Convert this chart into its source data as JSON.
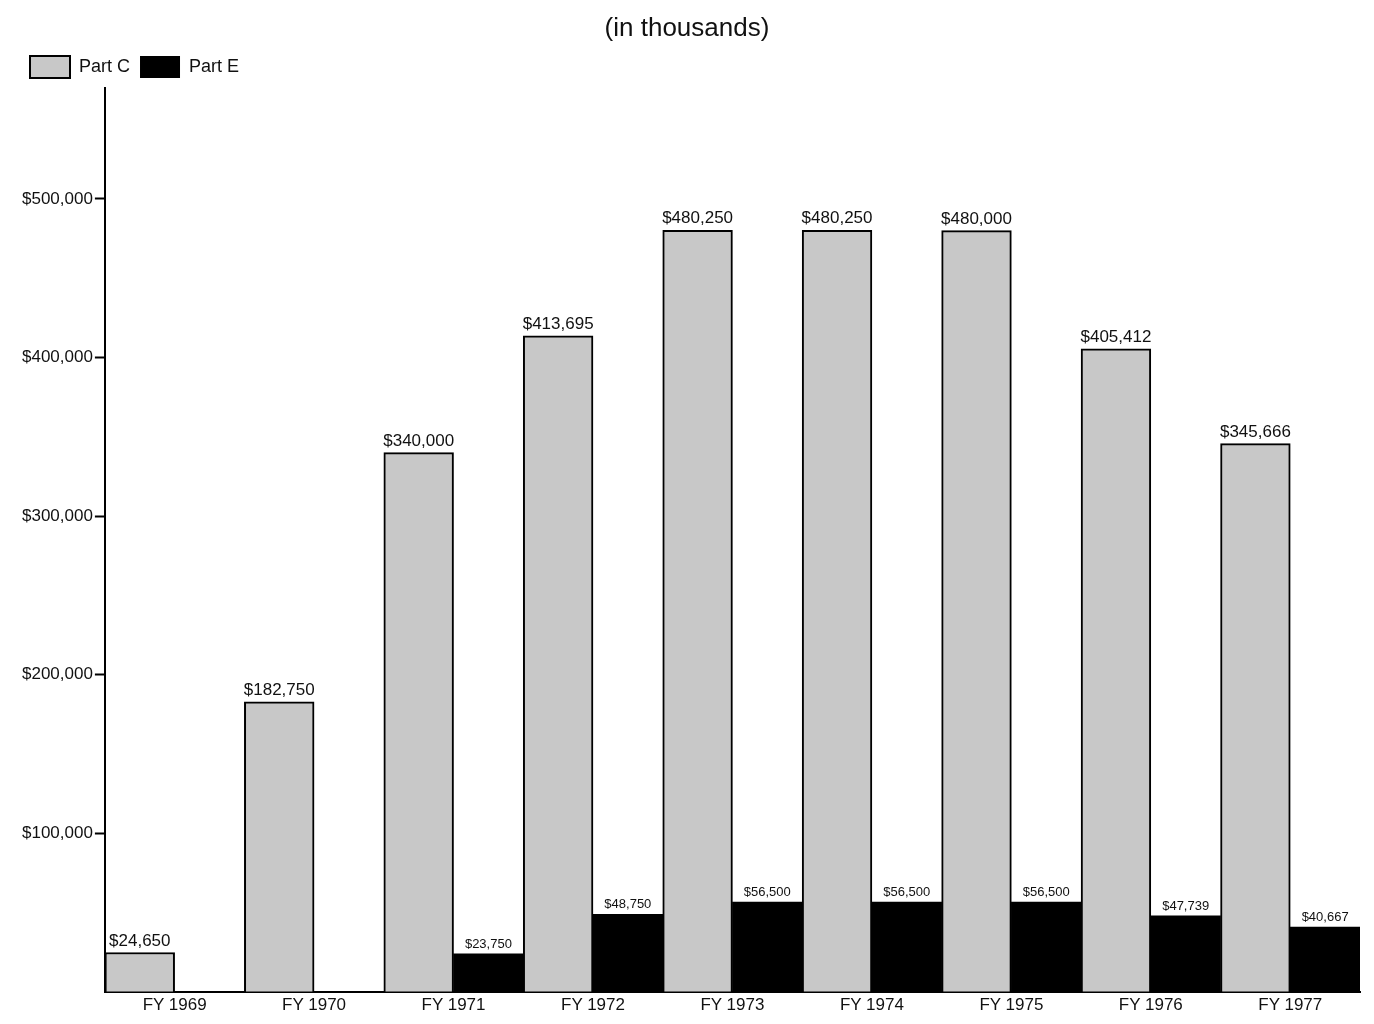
{
  "chart_data": {
    "type": "bar",
    "title": "(in thousands)",
    "categories": [
      "FY 1969",
      "FY 1970",
      "FY 1971",
      "FY 1972",
      "FY 1973",
      "FY 1974",
      "FY 1975",
      "FY 1976",
      "FY 1977"
    ],
    "series": [
      {
        "name": "Part C",
        "color": "#c8c8c8",
        "values": [
          24650,
          182750,
          340000,
          413695,
          480250,
          480250,
          480000,
          405412,
          345666
        ],
        "value_labels": [
          "$24,650",
          "$182,750",
          "$340,000",
          "$413,695",
          "$480,250",
          "$480,250",
          "$480,000",
          "$405,412",
          "$345,666"
        ]
      },
      {
        "name": "Part E",
        "color": "#000000",
        "values": [
          null,
          null,
          23750,
          48750,
          56500,
          56500,
          56500,
          47739,
          40667
        ],
        "value_labels": [
          null,
          null,
          "$23,750",
          "$48,750",
          "$56,500",
          "$56,500",
          "$56,500",
          "$47,739",
          "$40,667"
        ]
      }
    ],
    "ylim": [
      0,
      570000
    ],
    "yticks": [
      {
        "value": 100000,
        "label": "$100,000"
      },
      {
        "value": 200000,
        "label": "$200,000"
      },
      {
        "value": 300000,
        "label": "$300,000"
      },
      {
        "value": 400000,
        "label": "$400,000"
      },
      {
        "value": 500000,
        "label": "$500,000"
      }
    ],
    "grid": false,
    "legend": "top left"
  }
}
